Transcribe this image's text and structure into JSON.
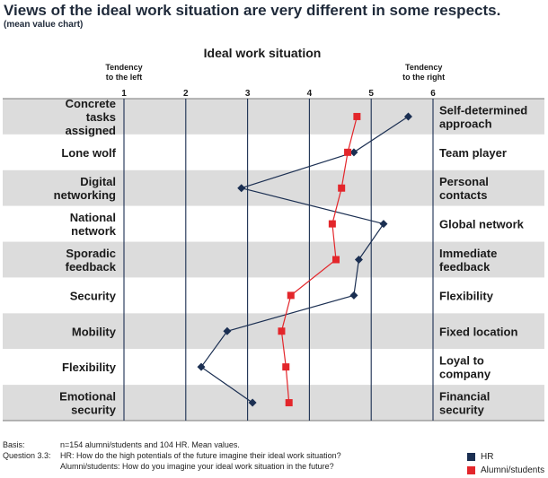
{
  "header": {
    "title": "Views of the ideal work situation are very different in some respects.",
    "subtitle": "(mean value chart)"
  },
  "chart_data": {
    "type": "line",
    "title": "Ideal work situation",
    "left_tendency_label": "Tendency to the left",
    "right_tendency_label": "Tendency to the right",
    "x_ticks": [
      "1",
      "2",
      "3",
      "4",
      "5",
      "6"
    ],
    "xlim": [
      1,
      6
    ],
    "grid": true,
    "legend_position": "bottom-right",
    "rows": [
      {
        "left": "Concrete tasks assigned",
        "right": "Self-determined approach"
      },
      {
        "left": "Lone wolf",
        "right": "Team player"
      },
      {
        "left": "Digital networking",
        "right": "Personal contacts"
      },
      {
        "left": "National network",
        "right": "Global network"
      },
      {
        "left": "Sporadic feedback",
        "right": "Immediate feedback"
      },
      {
        "left": "Security",
        "right": "Flexibility"
      },
      {
        "left": "Mobility",
        "right": "Fixed location"
      },
      {
        "left": "Flexibility",
        "right": "Loyal to company"
      },
      {
        "left": "Emotional security",
        "right": "Financial security"
      }
    ],
    "series": [
      {
        "name": "HR",
        "color": "#1b2f52",
        "marker": "diamond",
        "values": [
          5.6,
          4.72,
          2.9,
          5.2,
          4.8,
          4.72,
          2.67,
          2.25,
          3.08
        ]
      },
      {
        "name": "Alumni/students",
        "color": "#e3262b",
        "marker": "square",
        "values": [
          4.77,
          4.62,
          4.52,
          4.37,
          4.43,
          3.7,
          3.55,
          3.62,
          3.67
        ]
      }
    ]
  },
  "footer": {
    "basis_label": "Basis:",
    "basis_text": "n=154 alumni/students and 104 HR. Mean values.",
    "question_label": "Question 3.3:",
    "question_hr": "HR: How do the high potentials of the future imagine their ideal work situation?",
    "question_alumni": "Alumni/students: How do you imagine your ideal work situation in the future?"
  }
}
